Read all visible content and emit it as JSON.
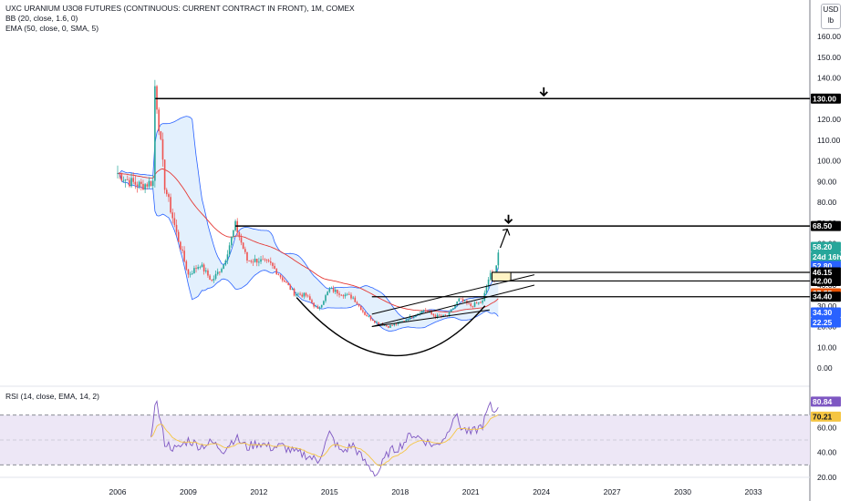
{
  "header": {
    "title": "UXC URANIUM U3O8 FUTURES (CONTINUOUS: CURRENT CONTRACT IN FRONT), 1M, COMEX",
    "indicator1": "BB (20, close, 1.6, 0)",
    "indicator2": "EMA (50, close, 0, SMA, 5)",
    "rsi": "RSI (14, close, EMA, 14, 2)"
  },
  "currency": {
    "code": "USD",
    "unit": "lb"
  },
  "colors": {
    "up": "#26a69a",
    "down": "#ef5350",
    "bb": "#2962ff",
    "bb_fill": "#e3f0fd",
    "ema": "#e53935",
    "rsi": "#7e57c2",
    "rsi_ma": "#f5c542",
    "rsi_band": "#ede7f6"
  },
  "chart_data": [
    {
      "type": "candlestick",
      "x_axis_ticks": [
        "2006",
        "2009",
        "2012",
        "2015",
        "2018",
        "2021",
        "2024",
        "2027",
        "2030",
        "2033"
      ],
      "y_axis_ticks": [
        "160.00",
        "150.00",
        "140.00",
        "130.00",
        "120.00",
        "110.00",
        "100.00",
        "90.00",
        "80.00",
        "70.00",
        "60.00",
        "50.00",
        "40.00",
        "30.00",
        "20.00",
        "10.00",
        "0.00"
      ],
      "approx_monthly_closes": [
        {
          "year": 2006.0,
          "close": 94
        },
        {
          "year": 2006.5,
          "close": 90
        },
        {
          "year": 2007.0,
          "close": 88
        },
        {
          "year": 2007.5,
          "close": 90
        },
        {
          "year": 2007.6,
          "close": 135
        },
        {
          "year": 2008.0,
          "close": 88
        },
        {
          "year": 2008.5,
          "close": 65
        },
        {
          "year": 2009.0,
          "close": 45
        },
        {
          "year": 2009.5,
          "close": 50
        },
        {
          "year": 2010.0,
          "close": 42
        },
        {
          "year": 2010.5,
          "close": 50
        },
        {
          "year": 2011.0,
          "close": 69
        },
        {
          "year": 2011.5,
          "close": 52
        },
        {
          "year": 2012.0,
          "close": 52
        },
        {
          "year": 2012.5,
          "close": 50
        },
        {
          "year": 2013.0,
          "close": 43
        },
        {
          "year": 2013.5,
          "close": 36
        },
        {
          "year": 2014.0,
          "close": 35
        },
        {
          "year": 2014.5,
          "close": 28
        },
        {
          "year": 2015.0,
          "close": 38
        },
        {
          "year": 2015.5,
          "close": 36
        },
        {
          "year": 2016.0,
          "close": 34
        },
        {
          "year": 2016.5,
          "close": 26
        },
        {
          "year": 2017.0,
          "close": 22
        },
        {
          "year": 2017.5,
          "close": 20
        },
        {
          "year": 2018.0,
          "close": 22
        },
        {
          "year": 2018.5,
          "close": 25
        },
        {
          "year": 2019.0,
          "close": 28
        },
        {
          "year": 2019.5,
          "close": 25
        },
        {
          "year": 2020.0,
          "close": 25
        },
        {
          "year": 2020.5,
          "close": 33
        },
        {
          "year": 2021.0,
          "close": 30
        },
        {
          "year": 2021.5,
          "close": 32
        },
        {
          "year": 2021.8,
          "close": 45
        },
        {
          "year": 2022.0,
          "close": 44
        },
        {
          "year": 2022.2,
          "close": 58.2
        }
      ],
      "horizontal_levels": [
        130.0,
        68.5,
        46.15,
        42.0,
        34.4
      ],
      "price_labels": [
        {
          "text": "130.00",
          "bg": "#000000",
          "fg": "#ffffff"
        },
        {
          "text": "68.50",
          "bg": "#000000",
          "fg": "#ffffff"
        },
        {
          "text": "58.20",
          "bg": "#26a69a",
          "fg": "#ffffff"
        },
        {
          "text": "24d 16h",
          "bg": "#26a69a",
          "fg": "#ffffff"
        },
        {
          "text": "52.80",
          "bg": "#2962ff",
          "fg": "#ffffff"
        },
        {
          "text": "46.15",
          "bg": "#000000",
          "fg": "#ffffff"
        },
        {
          "text": "42.00",
          "bg": "#000000",
          "fg": "#ffffff"
        },
        {
          "text": "37.55",
          "bg": "#e65100",
          "fg": "#ffffff"
        },
        {
          "text": "34.40",
          "bg": "#000000",
          "fg": "#ffffff"
        },
        {
          "text": "34.30",
          "bg": "#2962ff",
          "fg": "#ffffff"
        },
        {
          "text": "22.25",
          "bg": "#2962ff",
          "fg": "#ffffff"
        }
      ]
    },
    {
      "type": "line",
      "name": "RSI",
      "y_axis_ticks": [
        "80.00",
        "60.00",
        "40.00",
        "20.00"
      ],
      "band": [
        30,
        70
      ],
      "approx_values": [
        {
          "year": 2007.4,
          "rsi": 45
        },
        {
          "year": 2007.6,
          "rsi": 85
        },
        {
          "year": 2008.0,
          "rsi": 48
        },
        {
          "year": 2008.5,
          "rsi": 42
        },
        {
          "year": 2009.0,
          "rsi": 50
        },
        {
          "year": 2009.5,
          "rsi": 45
        },
        {
          "year": 2010.0,
          "rsi": 48
        },
        {
          "year": 2010.5,
          "rsi": 42
        },
        {
          "year": 2011.0,
          "rsi": 52
        },
        {
          "year": 2011.5,
          "rsi": 44
        },
        {
          "year": 2012.0,
          "rsi": 48
        },
        {
          "year": 2012.5,
          "rsi": 44
        },
        {
          "year": 2013.0,
          "rsi": 45
        },
        {
          "year": 2013.5,
          "rsi": 40
        },
        {
          "year": 2014.0,
          "rsi": 38
        },
        {
          "year": 2014.5,
          "rsi": 33
        },
        {
          "year": 2015.0,
          "rsi": 55
        },
        {
          "year": 2015.5,
          "rsi": 40
        },
        {
          "year": 2016.0,
          "rsi": 46
        },
        {
          "year": 2016.5,
          "rsi": 32
        },
        {
          "year": 2017.0,
          "rsi": 22
        },
        {
          "year": 2017.5,
          "rsi": 40
        },
        {
          "year": 2018.0,
          "rsi": 45
        },
        {
          "year": 2018.5,
          "rsi": 55
        },
        {
          "year": 2019.0,
          "rsi": 50
        },
        {
          "year": 2019.5,
          "rsi": 45
        },
        {
          "year": 2020.0,
          "rsi": 55
        },
        {
          "year": 2020.3,
          "rsi": 72
        },
        {
          "year": 2020.6,
          "rsi": 60
        },
        {
          "year": 2021.0,
          "rsi": 55
        },
        {
          "year": 2021.5,
          "rsi": 62
        },
        {
          "year": 2021.8,
          "rsi": 78
        },
        {
          "year": 2022.0,
          "rsi": 72
        },
        {
          "year": 2022.2,
          "rsi": 80.84
        }
      ],
      "value_labels": [
        {
          "text": "80.84",
          "bg": "#7e57c2",
          "fg": "#ffffff"
        },
        {
          "text": "70.21",
          "bg": "#f5c542",
          "fg": "#131722"
        }
      ]
    }
  ]
}
